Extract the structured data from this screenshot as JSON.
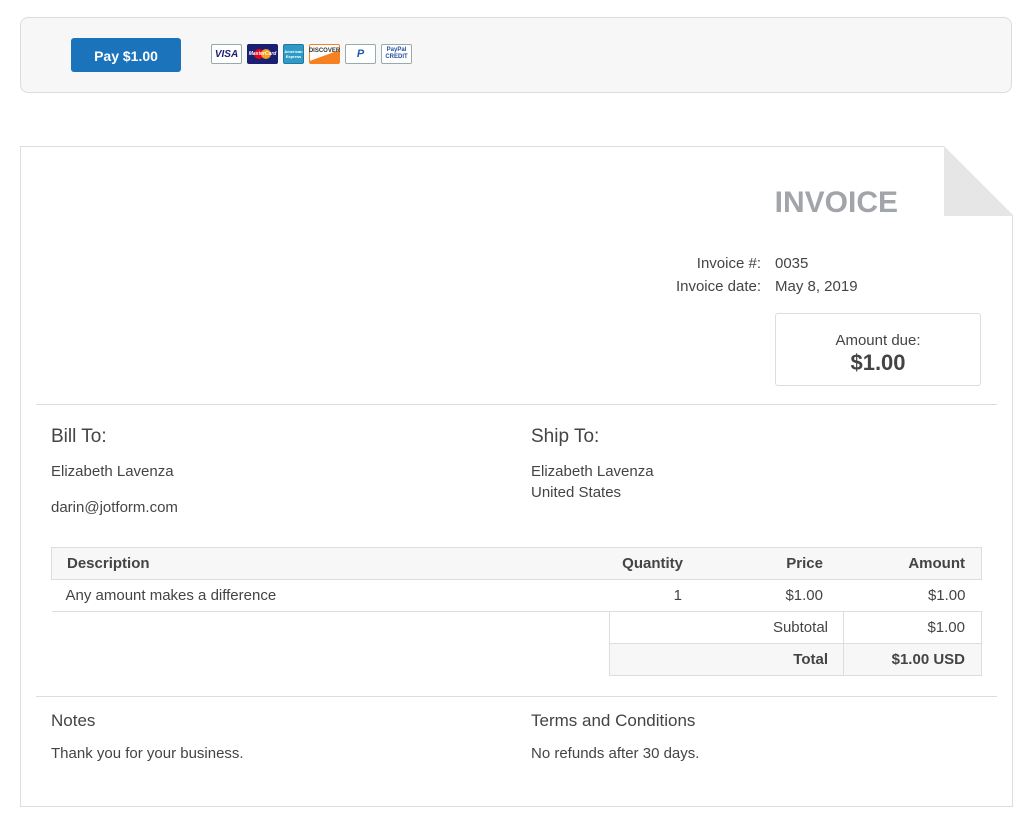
{
  "payment": {
    "button_label": "Pay $1.00",
    "cards": [
      {
        "name": "VISA",
        "color": "#1a1f71"
      },
      {
        "name": "MasterCard",
        "color": "#eb001b"
      },
      {
        "name": "American Express",
        "color": "#2e77bc"
      },
      {
        "name": "DISCOVER",
        "color": "#f68121"
      },
      {
        "name": "PayPal",
        "color": "#003087"
      },
      {
        "name": "PayPal CREDIT",
        "color": "#1f4e9c"
      }
    ]
  },
  "invoice": {
    "title": "INVOICE",
    "number_label": "Invoice #:",
    "number": "0035",
    "date_label": "Invoice date:",
    "date": "May 8, 2019",
    "amount_due_label": "Amount due:",
    "amount_due": "$1.00"
  },
  "bill_to": {
    "heading": "Bill To:",
    "name": "Elizabeth Lavenza",
    "email": "darin@jotform.com"
  },
  "ship_to": {
    "heading": "Ship To:",
    "name": "Elizabeth Lavenza",
    "country": "United States"
  },
  "items": {
    "headers": [
      "Description",
      "Quantity",
      "Price",
      "Amount"
    ],
    "rows": [
      [
        "Any amount makes a difference",
        "1",
        "$1.00",
        "$1.00"
      ]
    ],
    "subtotal_label": "Subtotal",
    "subtotal": "$1.00",
    "total_label": "Total",
    "total": "$1.00 USD"
  },
  "notes": {
    "heading": "Notes",
    "text": "Thank you for your business."
  },
  "terms": {
    "heading": "Terms and Conditions",
    "text": "No refunds after 30 days."
  }
}
